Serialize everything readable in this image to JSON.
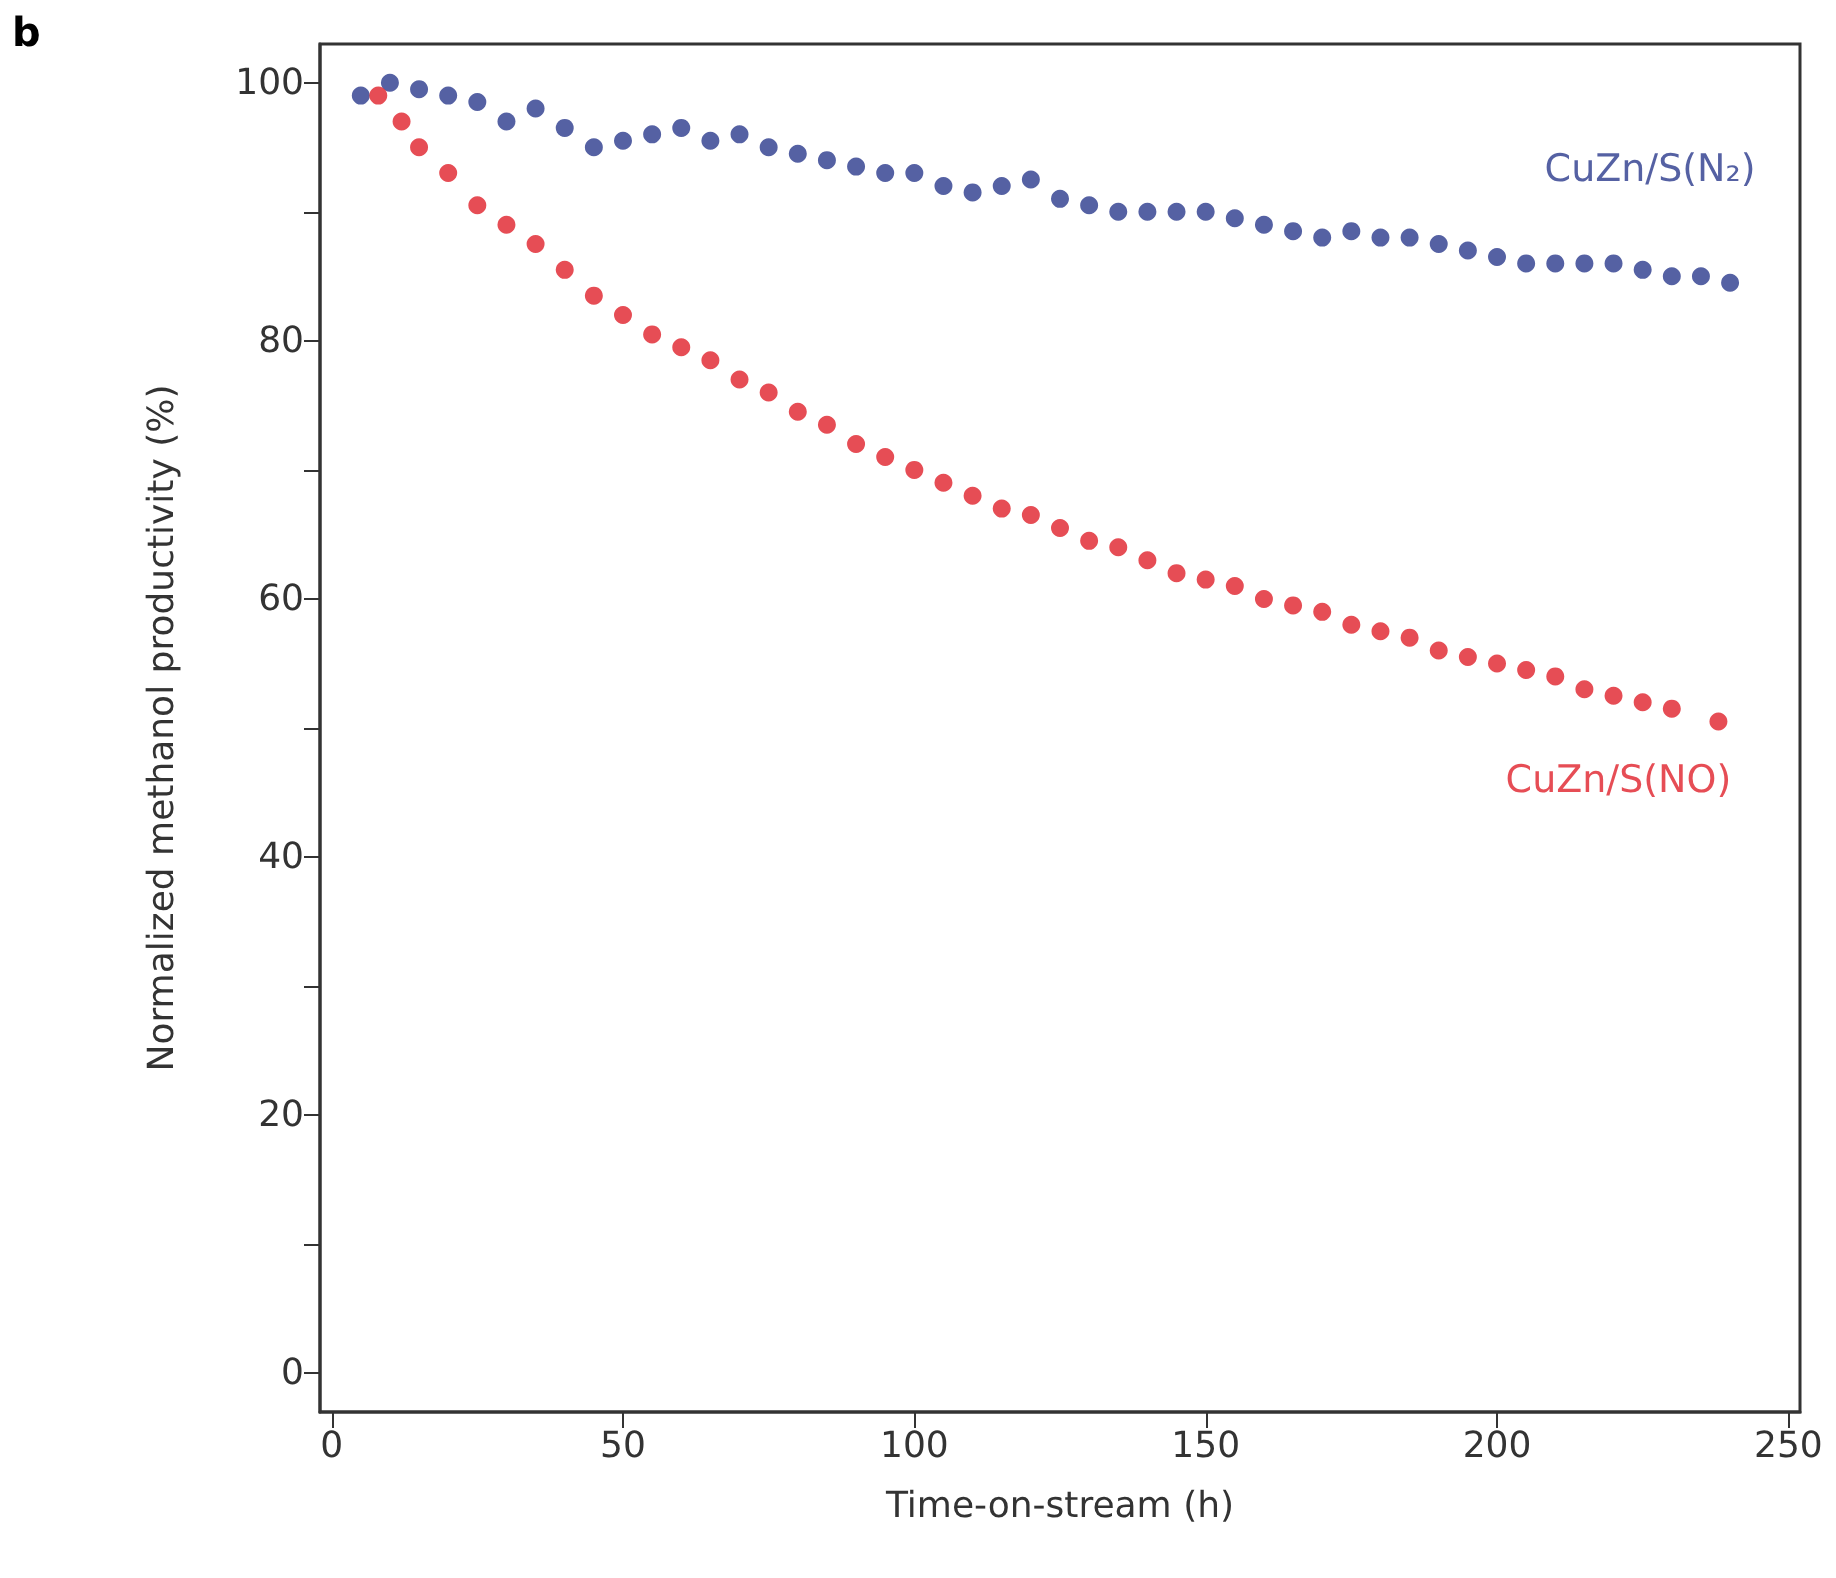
{
  "chart_data": {
    "type": "scatter",
    "xlabel": "Time-on-stream (h)",
    "ylabel": "Normalized methanol productivity (%)",
    "annotations": [
      "b"
    ],
    "xlim": [
      -2,
      252
    ],
    "xticks": [
      0,
      50,
      100,
      150,
      200,
      250
    ],
    "ylim": [
      -3,
      103
    ],
    "yticks": [
      0,
      {
        "value": 10,
        "label": null
      },
      20,
      {
        "value": 30,
        "label": null
      },
      40,
      {
        "value": 50,
        "label": null
      },
      60,
      {
        "value": 70,
        "label": null
      },
      80,
      {
        "value": 90,
        "label": null
      },
      100
    ],
    "grid": false,
    "legend": false,
    "marker": "circle",
    "series": [
      {
        "name": "CuZn/S(N₂)",
        "color": "#2b3a8c",
        "x": [
          5,
          10,
          15,
          20,
          25,
          30,
          35,
          40,
          45,
          50,
          55,
          60,
          65,
          70,
          75,
          80,
          85,
          90,
          95,
          100,
          105,
          110,
          115,
          120,
          125,
          130,
          135,
          140,
          145,
          150,
          155,
          160,
          165,
          170,
          175,
          180,
          185,
          190,
          195,
          200,
          205,
          210,
          215,
          220,
          225,
          230,
          235,
          240
        ],
        "values": [
          99,
          100,
          99.5,
          99,
          98.5,
          97,
          98,
          96.5,
          95,
          95.5,
          96,
          96.5,
          95.5,
          96,
          95,
          94.5,
          94,
          93.5,
          93,
          93,
          92,
          91.5,
          92,
          92.5,
          91,
          90.5,
          90,
          90,
          90,
          90,
          89.5,
          89,
          88.5,
          88,
          88.5,
          88,
          88,
          87.5,
          87,
          86.5,
          86,
          86,
          86,
          86,
          85.5,
          85,
          85,
          84.5
        ]
      },
      {
        "name": "CuZn/S(NO)",
        "color": "#e0202a",
        "x": [
          8,
          12,
          15,
          20,
          25,
          30,
          35,
          40,
          45,
          50,
          55,
          60,
          65,
          70,
          75,
          80,
          85,
          90,
          95,
          100,
          105,
          110,
          115,
          120,
          125,
          130,
          135,
          140,
          145,
          150,
          155,
          160,
          165,
          170,
          175,
          180,
          185,
          190,
          195,
          200,
          205,
          210,
          215,
          220,
          225,
          230,
          238
        ],
        "values": [
          99,
          97,
          95,
          93,
          90.5,
          89,
          87.5,
          85.5,
          83.5,
          82,
          80.5,
          79.5,
          78.5,
          77,
          76,
          74.5,
          73.5,
          72,
          71,
          70,
          69,
          68,
          67,
          66.5,
          65.5,
          64.5,
          64,
          63,
          62,
          61.5,
          61,
          60,
          59.5,
          59,
          58,
          57.5,
          57,
          56,
          55.5,
          55,
          54.5,
          54,
          53,
          52.5,
          52,
          51.5,
          50.5
        ]
      }
    ]
  }
}
